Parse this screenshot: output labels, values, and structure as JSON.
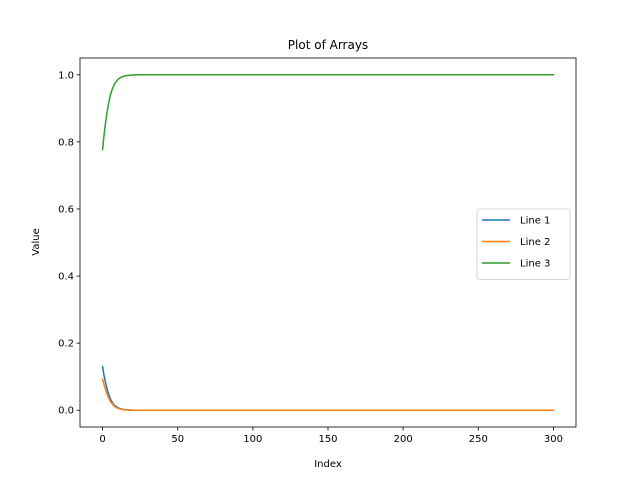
{
  "chart_data": {
    "type": "line",
    "title": "Plot of Arrays",
    "xlabel": "Index",
    "ylabel": "Value",
    "xlim": [
      -15,
      315
    ],
    "ylim": [
      -0.05,
      1.05
    ],
    "xticks": [
      0,
      50,
      100,
      150,
      200,
      250,
      300
    ],
    "yticks": [
      0.0,
      0.2,
      0.4,
      0.6,
      0.8,
      1.0
    ],
    "ytick_labels": [
      "0.0",
      "0.2",
      "0.4",
      "0.6",
      "0.8",
      "1.0"
    ],
    "grid": false,
    "legend": "center-right",
    "series": [
      {
        "name": "Line 1",
        "color": "#1f77b4",
        "x": [
          0,
          1,
          2,
          3,
          4,
          5,
          6,
          7,
          8,
          10,
          12,
          15,
          20,
          30,
          50,
          100,
          150,
          200,
          250,
          300
        ],
        "values": [
          0.13,
          0.104,
          0.082,
          0.064,
          0.048,
          0.036,
          0.027,
          0.02,
          0.014,
          0.008,
          0.004,
          0.0015,
          0.0003,
          0.0,
          0.0,
          0.0,
          0.0,
          0.0,
          0.0,
          0.0
        ]
      },
      {
        "name": "Line 2",
        "color": "#ff7f0e",
        "x": [
          0,
          1,
          2,
          3,
          4,
          5,
          6,
          7,
          8,
          10,
          12,
          15,
          20,
          30,
          50,
          100,
          150,
          200,
          250,
          300
        ],
        "values": [
          0.093,
          0.076,
          0.061,
          0.048,
          0.037,
          0.028,
          0.021,
          0.016,
          0.011,
          0.006,
          0.003,
          0.0012,
          0.0002,
          0.0,
          0.0,
          0.0,
          0.0,
          0.0,
          0.0,
          0.0
        ]
      },
      {
        "name": "Line 3",
        "color": "#2ca02c",
        "x": [
          0,
          1,
          2,
          3,
          4,
          5,
          6,
          7,
          8,
          10,
          12,
          15,
          20,
          25,
          30,
          50,
          100,
          150,
          200,
          250,
          300
        ],
        "values": [
          0.777,
          0.82,
          0.857,
          0.888,
          0.914,
          0.935,
          0.951,
          0.963,
          0.973,
          0.985,
          0.992,
          0.997,
          0.9995,
          1.0,
          1.0,
          1.0,
          1.0,
          1.0,
          1.0,
          1.0,
          1.0
        ]
      }
    ]
  }
}
